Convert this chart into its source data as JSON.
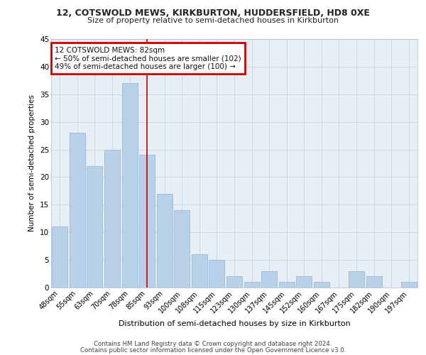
{
  "title1": "12, COTSWOLD MEWS, KIRKBURTON, HUDDERSFIELD, HD8 0XE",
  "title2": "Size of property relative to semi-detached houses in Kirkburton",
  "xlabel": "Distribution of semi-detached houses by size in Kirkburton",
  "ylabel": "Number of semi-detached properties",
  "categories": [
    "48sqm",
    "55sqm",
    "63sqm",
    "70sqm",
    "78sqm",
    "85sqm",
    "93sqm",
    "100sqm",
    "108sqm",
    "115sqm",
    "123sqm",
    "130sqm",
    "137sqm",
    "145sqm",
    "152sqm",
    "160sqm",
    "167sqm",
    "175sqm",
    "182sqm",
    "190sqm",
    "197sqm"
  ],
  "values": [
    11,
    28,
    22,
    25,
    37,
    24,
    17,
    14,
    6,
    5,
    2,
    1,
    3,
    1,
    2,
    1,
    0,
    3,
    2,
    0,
    1
  ],
  "bar_color": "#b8d0e8",
  "bar_edge_color": "#9ab8d4",
  "red_line_index": 5,
  "annotation_line1": "12 COTSWOLD MEWS: 82sqm",
  "annotation_line2": "← 50% of semi-detached houses are smaller (102)",
  "annotation_line3": "49% of semi-detached houses are larger (100) →",
  "annotation_box_color": "#ffffff",
  "annotation_box_edge_color": "#cc0000",
  "ylim": [
    0,
    45
  ],
  "yticks": [
    0,
    5,
    10,
    15,
    20,
    25,
    30,
    35,
    40,
    45
  ],
  "footer_line1": "Contains HM Land Registry data © Crown copyright and database right 2024.",
  "footer_line2": "Contains public sector information licensed under the Open Government Licence v3.0.",
  "plot_bg_color": "#e8eef5",
  "grid_color": "#c8d4e0"
}
